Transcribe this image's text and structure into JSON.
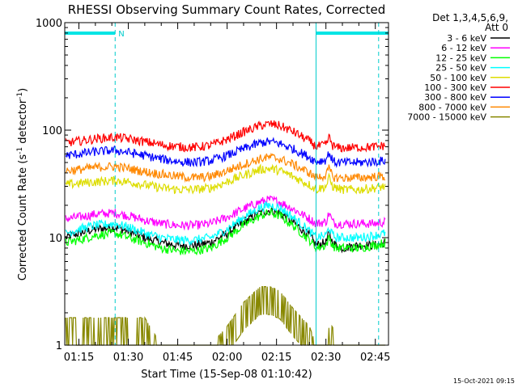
{
  "chart_data": {
    "type": "line",
    "title": "RHESSI Observing Summary Count Rates, Corrected",
    "xlabel": "Start Time (15-Sep-08 01:10:42)",
    "ylabel_parts": [
      "Corrected Count Rate (s",
      "-1",
      " detector",
      "-1",
      ")"
    ],
    "y_scale": "log",
    "ylim": [
      1,
      1000
    ],
    "xlim": [
      "01:10:42",
      "02:49:00"
    ],
    "y_ticks": [
      "1",
      "10",
      "100",
      "1000"
    ],
    "x_ticks": [
      "01:15",
      "01:30",
      "01:45",
      "02:00",
      "02:15",
      "02:30",
      "02:45"
    ],
    "legend_header": [
      "Det 1,3,4,5,6,9,",
      "Att 0"
    ],
    "legend_position": "right",
    "timestamp": "15-Oct-2021 09:15",
    "night_bars": [
      {
        "start": "01:10:42",
        "end": "01:26:00",
        "label": "N"
      },
      {
        "start": "02:27:00",
        "end": "02:49:00",
        "label": ""
      }
    ],
    "dashed_markers": [
      "01:26:00",
      "02:46:00"
    ],
    "solid_markers": [
      "01:10:42",
      "02:27:00"
    ],
    "x": [
      "01:11",
      "01:15",
      "01:20",
      "01:26",
      "01:30",
      "01:35",
      "01:40",
      "01:45",
      "01:50",
      "01:55",
      "02:00",
      "02:05",
      "02:10",
      "02:13",
      "02:16",
      "02:20",
      "02:25",
      "02:27",
      "02:30",
      "02:31",
      "02:32",
      "02:33",
      "02:35",
      "02:40",
      "02:45",
      "02:48"
    ],
    "series": [
      {
        "name": "3 - 6 keV",
        "color": "#000000",
        "values": [
          10,
          11,
          12,
          12.5,
          11.5,
          10,
          9,
          8.5,
          8.5,
          9,
          11,
          14,
          17,
          18,
          17,
          14,
          10.5,
          8.5,
          9,
          11,
          9,
          8.5,
          8,
          8.5,
          8.5,
          9
        ]
      },
      {
        "name": "6 - 12 keV",
        "color": "#ff00ff",
        "values": [
          15,
          15.5,
          16.5,
          17,
          16,
          14.5,
          13.5,
          13,
          13,
          13.5,
          15.5,
          18.5,
          21.5,
          22.5,
          21.5,
          18.5,
          15,
          13.5,
          14,
          17,
          14,
          13.5,
          13.5,
          13.5,
          13.5,
          14
        ]
      },
      {
        "name": "12 - 25 keV",
        "color": "#00ff00",
        "values": [
          9,
          9.5,
          10.5,
          11,
          10,
          9,
          8,
          7.5,
          7.5,
          8,
          10,
          13,
          16,
          17,
          16,
          13,
          9.5,
          8,
          8.5,
          10,
          8.5,
          8,
          8,
          8,
          8.5,
          9
        ]
      },
      {
        "name": "25 - 50 keV",
        "color": "#00ffff",
        "values": [
          11,
          12,
          13,
          13.5,
          12.5,
          11,
          10,
          9.5,
          9.5,
          10,
          12,
          15.5,
          19,
          20,
          19,
          15.5,
          11.5,
          10,
          10.5,
          12.5,
          10.5,
          10,
          10,
          10,
          10.5,
          11
        ]
      },
      {
        "name": "50 - 100 keV",
        "color": "#dddd00",
        "values": [
          31,
          32,
          33,
          34,
          33,
          31,
          29,
          28,
          28,
          29,
          33,
          38,
          43,
          44,
          42,
          37,
          31,
          28,
          30,
          36,
          30,
          29,
          28,
          28,
          29,
          30
        ]
      },
      {
        "name": "100 - 300 keV",
        "color": "#ff0000",
        "values": [
          76,
          79,
          83,
          86,
          83,
          78,
          73,
          70,
          69,
          72,
          82,
          96,
          110,
          114,
          110,
          97,
          79,
          70,
          73,
          86,
          72,
          69,
          68,
          69,
          70,
          72
        ]
      },
      {
        "name": "300 - 800 keV",
        "color": "#0000ff",
        "values": [
          58,
          60,
          63,
          65,
          62,
          58,
          54,
          51,
          50,
          52,
          58,
          67,
          76,
          78,
          75,
          67,
          56,
          51,
          53,
          62,
          52,
          50,
          50,
          50,
          51,
          52
        ]
      },
      {
        "name": "800 - 7000 keV",
        "color": "#ff8800",
        "values": [
          42,
          43,
          45,
          46,
          44,
          41,
          39,
          37,
          36,
          37,
          42,
          48,
          54,
          56,
          54,
          48,
          40,
          36,
          38,
          44,
          37,
          36,
          36,
          36,
          37,
          37
        ]
      },
      {
        "name": "7000 - 15000 keV",
        "color": "#888800",
        "values": [
          1.8,
          1.8,
          1.8,
          1.8,
          1.8,
          1.8,
          1,
          1,
          1,
          1,
          1.5,
          2.5,
          3.5,
          3.5,
          3.2,
          2.2,
          1.5,
          1,
          1,
          1.5,
          1.5,
          1,
          1,
          1,
          1,
          1
        ]
      }
    ]
  }
}
